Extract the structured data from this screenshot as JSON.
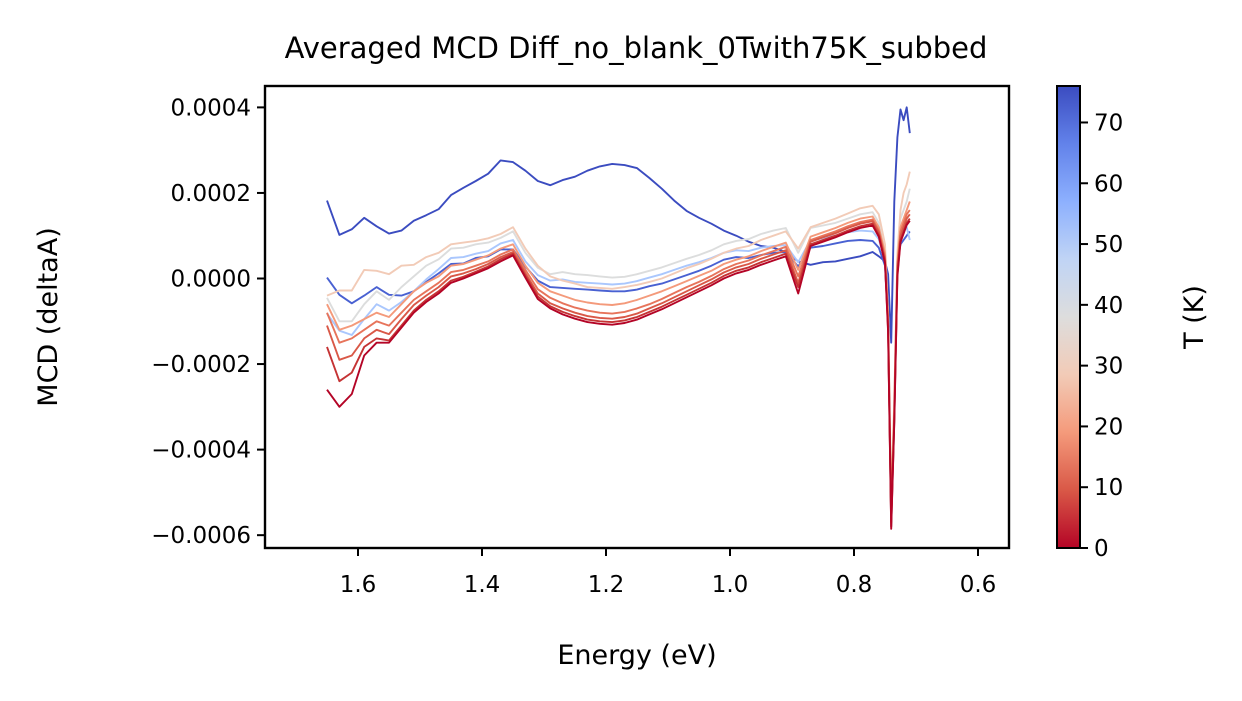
{
  "chart_data": {
    "type": "line",
    "title": "Averaged MCD Diff_no_blank_0Twith75K_subbed",
    "xlabel": "Energy (eV)",
    "ylabel": "MCD (deltaA)",
    "xlim": [
      1.75,
      0.55
    ],
    "ylim": [
      -0.00063,
      0.00045
    ],
    "x_inverted": true,
    "grid": false,
    "legend": "none",
    "xticks": [
      "1.6",
      "1.4",
      "1.2",
      "1.0",
      "0.8",
      "0.6"
    ],
    "yticks": [
      "0.0004",
      "0.0002",
      "0.0000",
      "−0.0002",
      "−0.0004",
      "−0.0006"
    ],
    "colorbar": {
      "label": "T (K)",
      "range": [
        0,
        76
      ],
      "ticks": [
        "0",
        "10",
        "20",
        "30",
        "40",
        "50",
        "60",
        "70"
      ],
      "colormap": "coolwarm_r"
    },
    "x": [
      1.65,
      1.63,
      1.61,
      1.59,
      1.57,
      1.55,
      1.53,
      1.51,
      1.49,
      1.47,
      1.45,
      1.43,
      1.41,
      1.39,
      1.37,
      1.35,
      1.33,
      1.31,
      1.29,
      1.27,
      1.25,
      1.23,
      1.21,
      1.19,
      1.17,
      1.15,
      1.13,
      1.11,
      1.09,
      1.07,
      1.05,
      1.03,
      1.01,
      0.99,
      0.97,
      0.95,
      0.93,
      0.91,
      0.89,
      0.87,
      0.85,
      0.83,
      0.81,
      0.79,
      0.77,
      0.76,
      0.75,
      0.745,
      0.74,
      0.735,
      0.73,
      0.725,
      0.72,
      0.715,
      0.71
    ],
    "series": [
      {
        "temperature": 75,
        "color": "#3b4cc0",
        "values": [
          0.000182,
          0.000102,
          0.000115,
          0.000142,
          0.000122,
          0.000105,
          0.000112,
          0.000135,
          0.000148,
          0.000162,
          0.000195,
          0.000212,
          0.000228,
          0.000245,
          0.000276,
          0.000272,
          0.000252,
          0.000228,
          0.000218,
          0.00023,
          0.000238,
          0.000252,
          0.000262,
          0.000268,
          0.000265,
          0.000258,
          0.000235,
          0.00021,
          0.000182,
          0.000158,
          0.000142,
          0.000128,
          0.000112,
          0.0001,
          8.6e-05,
          7.6e-05,
          7.2e-05,
          6.2e-05,
          4e-05,
          3.2e-05,
          3.8e-05,
          4e-05,
          4.6e-05,
          5.2e-05,
          6.2e-05,
          5.2e-05,
          4e-05,
          1e-05,
          -0.00015,
          0.00018,
          0.00033,
          0.000395,
          0.00037,
          0.0004,
          0.00034
        ]
      },
      {
        "temperature": 70,
        "color": "#4961d2",
        "values": [
          2e-06,
          -3.8e-05,
          -5.8e-05,
          -4e-05,
          -2e-05,
          -3.8e-05,
          -4e-05,
          -3e-05,
          -8e-06,
          1.2e-05,
          3.4e-05,
          3.5e-05,
          4.8e-05,
          5.2e-05,
          6.8e-05,
          6.8e-05,
          2.8e-05,
          -5e-06,
          -2e-05,
          -2.2e-05,
          -2.4e-05,
          -2.6e-05,
          -2.8e-05,
          -3e-05,
          -3e-05,
          -2.6e-05,
          -1.8e-05,
          -1.2e-05,
          -2e-06,
          8e-06,
          1.8e-05,
          3e-05,
          4.4e-05,
          5e-05,
          4.8e-05,
          5.5e-05,
          6e-05,
          6.2e-05,
          2.8e-05,
          7.2e-05,
          7.6e-05,
          8.2e-05,
          8.8e-05,
          9e-05,
          8.8e-05,
          7.2e-05,
          3e-05,
          -0.0001,
          -0.00056,
          -0.0003,
          4e-05,
          8e-05,
          9e-05,
          0.0001,
          0.00011
        ]
      },
      {
        "temperature": 45,
        "color": "#aac7fd",
        "values": [
          -8.2e-05,
          -0.000122,
          -0.000132,
          -9.5e-05,
          -6e-05,
          -7.5e-05,
          -5.5e-05,
          -3e-05,
          -2e-06,
          2.2e-05,
          4.8e-05,
          5e-05,
          5.8e-05,
          6.4e-05,
          8.2e-05,
          9e-05,
          4e-05,
          8e-06,
          -5e-06,
          -2e-06,
          -8e-06,
          -1e-05,
          -1.2e-05,
          -1.4e-05,
          -1.2e-05,
          -6e-06,
          2e-06,
          1e-05,
          2e-05,
          3e-05,
          3.8e-05,
          4.8e-05,
          6e-05,
          6.6e-05,
          6.4e-05,
          7.2e-05,
          7.6e-05,
          7.8e-05,
          3.8e-05,
          9e-05,
          9.4e-05,
          0.0001,
          0.000108,
          0.000112,
          0.00011,
          9.2e-05,
          4e-05,
          -0.0001,
          -0.00058,
          -0.00033,
          4e-05,
          0.0001,
          0.00011,
          0.00012,
          9e-05
        ]
      },
      {
        "temperature": 40,
        "color": "#dcdddd",
        "values": [
          -4.5e-05,
          -0.0001,
          -0.0001,
          -6e-05,
          -3e-05,
          -5e-05,
          -2e-05,
          5e-06,
          3e-05,
          4.5e-05,
          7e-05,
          7.2e-05,
          8e-05,
          8.4e-05,
          9.5e-05,
          0.00011,
          6e-05,
          2.5e-05,
          1e-05,
          1.5e-05,
          1e-05,
          8e-06,
          5e-06,
          2e-06,
          4e-06,
          1e-05,
          1.8e-05,
          2.6e-05,
          3.6e-05,
          4.6e-05,
          5.5e-05,
          6.6e-05,
          8e-05,
          8.8e-05,
          9.2e-05,
          0.000104,
          0.000112,
          0.000118,
          6e-05,
          0.000118,
          0.000124,
          0.00013,
          0.00014,
          0.00015,
          0.000155,
          0.00013,
          6e-05,
          -9e-05,
          -0.00054,
          -0.0003,
          5e-05,
          0.00014,
          0.00016,
          0.00018,
          0.00021
        ]
      },
      {
        "temperature": 30,
        "color": "#f2cbb7",
        "values": [
          -4e-05,
          -2.8e-05,
          -2.8e-05,
          2e-05,
          1.8e-05,
          1e-05,
          3e-05,
          3.2e-05,
          5e-05,
          6e-05,
          8e-05,
          8.4e-05,
          8.8e-05,
          9.4e-05,
          0.000104,
          0.00012,
          7e-05,
          3e-05,
          5e-06,
          -5e-06,
          -1.2e-05,
          -2e-05,
          -2.2e-05,
          -2.4e-05,
          -2e-05,
          -1.5e-05,
          -8e-06,
          0.0,
          1.2e-05,
          2.4e-05,
          3.4e-05,
          4.6e-05,
          6e-05,
          7e-05,
          7.6e-05,
          9e-05,
          0.0001,
          0.00011,
          7e-05,
          0.00012,
          0.00013,
          0.00014,
          0.000152,
          0.000164,
          0.00017,
          0.00015,
          8e-05,
          -8e-05,
          -0.00052,
          -0.00028,
          6e-05,
          0.00016,
          0.0002,
          0.00022,
          0.00025
        ]
      },
      {
        "temperature": 20,
        "color": "#f49a7b",
        "values": [
          -6e-05,
          -0.00012,
          -0.00011,
          -9.5e-05,
          -8e-05,
          -9e-05,
          -6e-05,
          -3e-05,
          -1e-05,
          5e-06,
          3e-05,
          3.4e-05,
          4.4e-05,
          5.4e-05,
          7e-05,
          8e-05,
          3e-05,
          -1e-05,
          -3e-05,
          -4e-05,
          -5e-05,
          -5.6e-05,
          -6e-05,
          -6.2e-05,
          -5.8e-05,
          -5e-05,
          -4e-05,
          -3e-05,
          -1.8e-05,
          -6e-06,
          6e-06,
          1.8e-05,
          3.4e-05,
          4.4e-05,
          5.2e-05,
          6.4e-05,
          7.4e-05,
          8.4e-05,
          2e-05,
          9.8e-05,
          0.000108,
          0.000118,
          0.00013,
          0.00014,
          0.000145,
          0.00012,
          6e-05,
          -9e-05,
          -0.00055,
          -0.0003,
          4e-05,
          0.00012,
          0.00014,
          0.00016,
          0.00018
        ]
      },
      {
        "temperature": 15,
        "color": "#e7745b",
        "values": [
          -8e-05,
          -0.00015,
          -0.00014,
          -0.00012,
          -0.0001,
          -0.00011,
          -8e-05,
          -5e-05,
          -3e-05,
          -1e-05,
          1.5e-05,
          2e-05,
          3e-05,
          4e-05,
          5.6e-05,
          6.8e-05,
          2e-05,
          -2.5e-05,
          -4.5e-05,
          -5.8e-05,
          -6.8e-05,
          -7.5e-05,
          -8e-05,
          -8.2e-05,
          -7.8e-05,
          -7e-05,
          -6e-05,
          -4.8e-05,
          -3.4e-05,
          -2e-05,
          -8e-06,
          6e-06,
          2.2e-05,
          3.4e-05,
          4.2e-05,
          5.4e-05,
          6.4e-05,
          7.4e-05,
          5e-06,
          9e-05,
          0.0001,
          0.00011,
          0.000122,
          0.000132,
          0.000138,
          0.000112,
          5e-05,
          -0.0001,
          -0.00056,
          -0.00031,
          3e-05,
          0.00011,
          0.00013,
          0.00015,
          0.00016
        ]
      },
      {
        "temperature": 10,
        "color": "#d95847",
        "values": [
          -0.00011,
          -0.00019,
          -0.00018,
          -0.00014,
          -0.00012,
          -0.00013,
          -9.5e-05,
          -6.2e-05,
          -4e-05,
          -2e-05,
          5e-06,
          1.2e-05,
          2.2e-05,
          3.4e-05,
          5e-05,
          6.2e-05,
          1.2e-05,
          -3.5e-05,
          -5.8e-05,
          -7e-05,
          -8e-05,
          -8.8e-05,
          -9.2e-05,
          -9.4e-05,
          -9e-05,
          -8.2e-05,
          -7e-05,
          -5.8e-05,
          -4.4e-05,
          -3e-05,
          -1.6e-05,
          -2e-06,
          1.4e-05,
          2.6e-05,
          3.4e-05,
          4.6e-05,
          5.6e-05,
          6.6e-05,
          -1e-05,
          8.6e-05,
          9.6e-05,
          0.000106,
          0.000118,
          0.000128,
          0.000134,
          0.000108,
          4.6e-05,
          -0.00011,
          -0.00057,
          -0.00032,
          2e-05,
          0.0001,
          0.00012,
          0.00014,
          0.00015
        ]
      },
      {
        "temperature": 5,
        "color": "#c53334",
        "values": [
          -0.00016,
          -0.00024,
          -0.00022,
          -0.00016,
          -0.00014,
          -0.000145,
          -0.00011,
          -7.5e-05,
          -5e-05,
          -3e-05,
          -5e-06,
          4e-06,
          1.6e-05,
          2.8e-05,
          4.5e-05,
          5.8e-05,
          6e-06,
          -4.2e-05,
          -6.5e-05,
          -7.8e-05,
          -8.8e-05,
          -9.6e-05,
          -0.0001,
          -0.000102,
          -9.8e-05,
          -9e-05,
          -7.8e-05,
          -6.6e-05,
          -5.2e-05,
          -3.8e-05,
          -2.4e-05,
          -1e-05,
          6e-06,
          1.8e-05,
          2.6e-05,
          3.8e-05,
          4.8e-05,
          5.8e-05,
          -2e-05,
          8e-05,
          9e-05,
          0.0001,
          0.000112,
          0.000122,
          0.000128,
          0.000102,
          4e-05,
          -0.00012,
          -0.00058,
          -0.00033,
          1e-05,
          9e-05,
          0.00011,
          0.00013,
          0.00014
        ]
      },
      {
        "temperature": 2,
        "color": "#b40426",
        "values": [
          -0.00026,
          -0.0003,
          -0.00027,
          -0.00018,
          -0.00015,
          -0.00015,
          -0.000115,
          -8e-05,
          -5.5e-05,
          -3.5e-05,
          -1e-05,
          0.0,
          1.2e-05,
          2.4e-05,
          4e-05,
          5.4e-05,
          2e-06,
          -4.8e-05,
          -7e-05,
          -8.4e-05,
          -9.4e-05,
          -0.000102,
          -0.000106,
          -0.000108,
          -0.000104,
          -9.6e-05,
          -8.4e-05,
          -7.2e-05,
          -5.8e-05,
          -4.4e-05,
          -3e-05,
          -1.6e-05,
          0.0,
          1.2e-05,
          2e-05,
          3.2e-05,
          4.2e-05,
          5.2e-05,
          -3.5e-05,
          7.6e-05,
          8.6e-05,
          9.6e-05,
          0.000108,
          0.000118,
          0.000124,
          9.8e-05,
          3.6e-05,
          -0.000125,
          -0.000585,
          -0.000335,
          5e-06,
          8.5e-05,
          0.000105,
          0.000125,
          0.000135
        ]
      }
    ]
  }
}
